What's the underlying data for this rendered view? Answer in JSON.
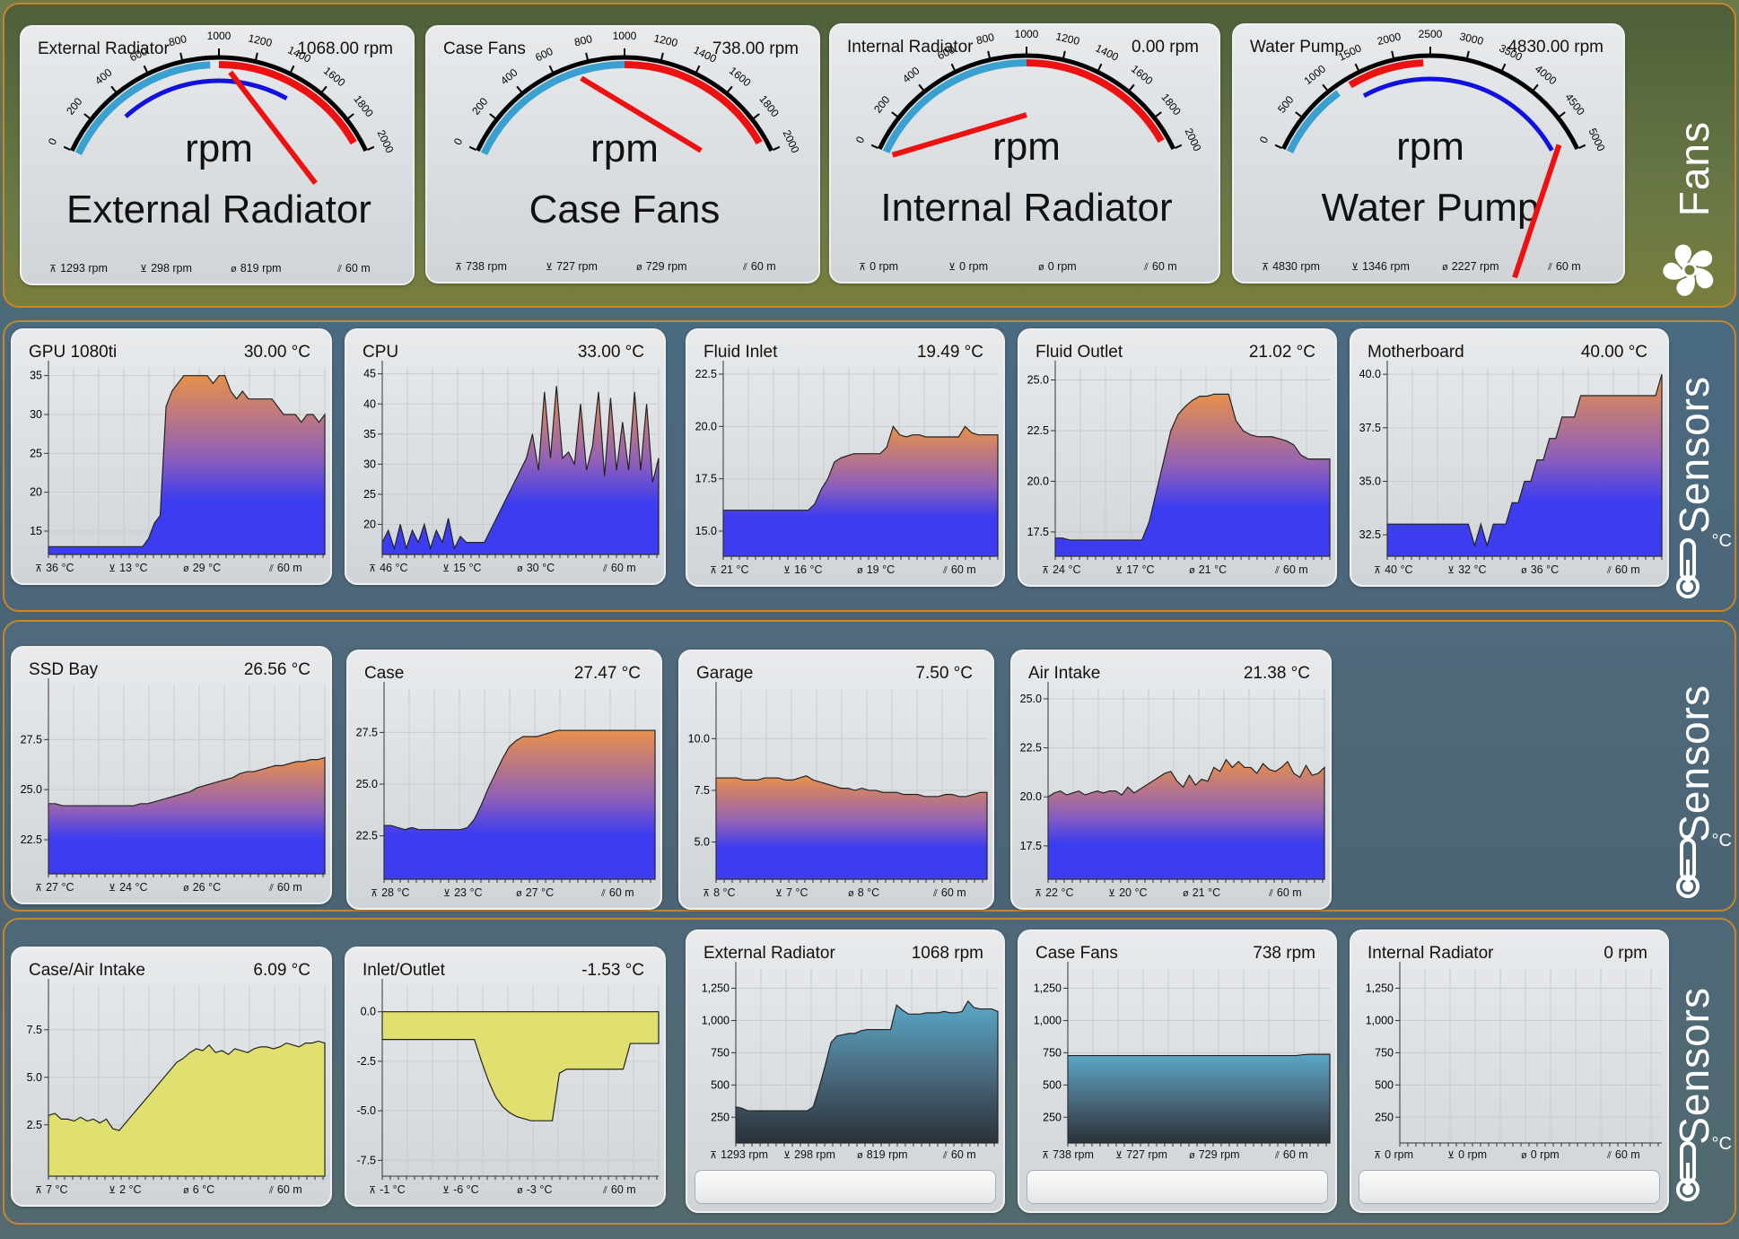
{
  "colors": {
    "band_border": "#c8862a",
    "fill_blue": "#3c3cf0",
    "fill_orange": "#e8904a",
    "fill_purple": "#9060b8",
    "fill_yellow": "#e0e070",
    "fill_teal": "#5aa8c8",
    "needle": "#ee1111",
    "gauge_red": "#ee1111",
    "gauge_blue": "#3aa0d0",
    "gauge_mark": "#1010e0"
  },
  "bands": [
    {
      "title": "Fans",
      "icon": "fan-icon"
    },
    {
      "title": "Sensors",
      "icon": "thermometer-icon",
      "unit": "°C"
    },
    {
      "title": "Sensors",
      "icon": "thermometer-icon",
      "unit": "°C"
    },
    {
      "title": "Sensors",
      "icon": "thermometer-icon",
      "unit": "°C"
    }
  ],
  "gauges": [
    {
      "name": "External Radiator",
      "value": "1068.00 rpm",
      "center": "rpm",
      "label": "External Radiator",
      "max": 2000,
      "ticks": [
        0,
        200,
        400,
        600,
        800,
        1000,
        1200,
        1400,
        1600,
        1800,
        2000
      ],
      "needle": 1068,
      "red_from": 1000,
      "red_to": 1930,
      "blue_from": 0,
      "blue_to": 950,
      "mark_from": 350,
      "mark_to": 1450,
      "stats": [
        "1293 rpm",
        "298 rpm",
        "819 rpm",
        "60 m"
      ]
    },
    {
      "name": "Case Fans",
      "value": "738.00 rpm",
      "center": "rpm",
      "label": "Case Fans",
      "max": 2000,
      "ticks": [
        0,
        200,
        400,
        600,
        800,
        1000,
        1200,
        1400,
        1600,
        1800,
        2000
      ],
      "needle": 738,
      "red_from": 1000,
      "red_to": 1930,
      "blue_from": 0,
      "blue_to": 1000,
      "mark_from": null,
      "mark_to": null,
      "stats": [
        "738 rpm",
        "727 rpm",
        "729 rpm",
        "60 m"
      ]
    },
    {
      "name": "Internal Radiator",
      "value": "0.00 rpm",
      "center": "rpm",
      "label": "Internal Radiator",
      "max": 2000,
      "ticks": [
        0,
        200,
        400,
        600,
        800,
        1000,
        1200,
        1400,
        1600,
        1800,
        2000
      ],
      "needle": 0,
      "red_from": 1000,
      "red_to": 1930,
      "blue_from": 0,
      "blue_to": 1000,
      "mark_from": null,
      "mark_to": null,
      "stats": [
        "0 rpm",
        "0 rpm",
        "0 rpm",
        "60 m"
      ]
    },
    {
      "name": "Water Pump",
      "value": "4830.00 rpm",
      "center": "rpm",
      "label": "Water Pump",
      "max": 5000,
      "ticks": [
        0,
        500,
        1000,
        1500,
        2000,
        2500,
        3000,
        3500,
        4000,
        4500,
        5000
      ],
      "needle": 4830,
      "red_from": 1300,
      "red_to": 2400,
      "blue_from": 0,
      "blue_to": 1100,
      "mark_from": 1400,
      "mark_to": 4850,
      "stats": [
        "4830 rpm",
        "1346 rpm",
        "2227 rpm",
        "60 m"
      ]
    }
  ],
  "charts": [
    {
      "name": "GPU 1080ti",
      "value": "30.00 °C",
      "yticks": [
        "35",
        "30",
        "25",
        "20",
        "15"
      ],
      "ymin": 12,
      "ymax": 36,
      "style": "temp",
      "stats": [
        "36 °C",
        "13 °C",
        "29 °C",
        "60 m"
      ],
      "chart_data": {
        "type": "area",
        "y": [
          13,
          13,
          13,
          13,
          13,
          13,
          13,
          13,
          13,
          13,
          13,
          13,
          13,
          13,
          13,
          13,
          13,
          14,
          16,
          17,
          31,
          33,
          34,
          35,
          35,
          35,
          35,
          35,
          34,
          35,
          35,
          33,
          32,
          33,
          32,
          32,
          32,
          32,
          32,
          31,
          30,
          30,
          30,
          29,
          30,
          30,
          29,
          30
        ]
      }
    },
    {
      "name": "CPU",
      "value": "33.00 °C",
      "yticks": [
        "45",
        "40",
        "35",
        "30",
        "25",
        "20"
      ],
      "ymin": 15,
      "ymax": 46,
      "style": "temp",
      "stats": [
        "46 °C",
        "15 °C",
        "30 °C",
        "60 m"
      ],
      "chart_data": {
        "type": "area",
        "y": [
          17,
          19,
          16,
          20,
          16,
          19,
          17,
          20,
          16,
          19,
          17,
          21,
          16,
          18,
          17,
          17,
          17,
          17,
          19,
          21,
          23,
          25,
          27,
          29,
          31,
          35,
          29,
          42,
          31,
          43,
          31,
          32,
          30,
          40,
          29,
          33,
          42,
          28,
          41,
          29,
          37,
          29,
          42,
          29,
          40,
          27,
          31
        ]
      }
    },
    {
      "name": "Fluid Inlet",
      "value": "19.49 °C",
      "yticks": [
        "22.5",
        "20.0",
        "17.5",
        "15.0"
      ],
      "ymin": 13.8,
      "ymax": 22.8,
      "style": "temp",
      "stats": [
        "21 °C",
        "16 °C",
        "19 °C",
        "60 m"
      ],
      "chart_data": {
        "type": "area",
        "y": [
          16,
          16,
          16,
          16,
          16,
          16,
          16,
          16,
          16,
          16,
          16,
          16,
          16,
          16,
          16.3,
          17,
          17.5,
          18.3,
          18.5,
          18.6,
          18.7,
          18.7,
          18.7,
          18.7,
          18.7,
          19,
          20,
          19.6,
          19.5,
          19.6,
          19.6,
          19.5,
          19.5,
          19.5,
          19.5,
          19.5,
          19.5,
          20,
          19.7,
          19.6,
          19.6,
          19.6,
          19.6
        ]
      }
    },
    {
      "name": "Fluid Outlet",
      "value": "21.02 °C",
      "yticks": [
        "25.0",
        "22.5",
        "20.0",
        "17.5"
      ],
      "ymin": 16.3,
      "ymax": 25.6,
      "style": "temp",
      "stats": [
        "24 °C",
        "17 °C",
        "21 °C",
        "60 m"
      ],
      "chart_data": {
        "type": "area",
        "y": [
          17.2,
          17.2,
          17.1,
          17.1,
          17.1,
          17.1,
          17.1,
          17.1,
          17.1,
          17.1,
          17.1,
          17.1,
          17.1,
          18,
          19.5,
          21,
          22.5,
          23.3,
          23.7,
          24,
          24.2,
          24.2,
          24.3,
          24.3,
          24.3,
          23,
          22.5,
          22.3,
          22.2,
          22.2,
          22.2,
          22.1,
          22,
          21.8,
          21.3,
          21.1,
          21.1,
          21.1,
          21.1
        ]
      }
    },
    {
      "name": "Motherboard",
      "value": "40.00 °C",
      "yticks": [
        "40.0",
        "37.5",
        "35.0",
        "32.5"
      ],
      "ymin": 31.5,
      "ymax": 40.3,
      "style": "temp",
      "stats": [
        "40 °C",
        "32 °C",
        "36 °C",
        "60 m"
      ],
      "chart_data": {
        "type": "area",
        "y": [
          33,
          33,
          33,
          33,
          33,
          33,
          33,
          33,
          33,
          33,
          33,
          33,
          33,
          33,
          32,
          33,
          32,
          33,
          33,
          33,
          34,
          34,
          35,
          35,
          36,
          36,
          37,
          37,
          38,
          38,
          38,
          39,
          39,
          39,
          39,
          39,
          39,
          39,
          39,
          39,
          39,
          39,
          39,
          39,
          40
        ]
      }
    },
    {
      "name": "SSD Bay",
      "value": "26.56 °C",
      "yticks": [
        "27.5",
        "25.0",
        "22.5"
      ],
      "ymin": 20.8,
      "ymax": 30.2,
      "style": "temp",
      "stats": [
        "27 °C",
        "24 °C",
        "26 °C",
        "60 m"
      ],
      "chart_data": {
        "type": "area",
        "y": [
          24.3,
          24.3,
          24.2,
          24.2,
          24.2,
          24.2,
          24.2,
          24.2,
          24.2,
          24.2,
          24.2,
          24.2,
          24.2,
          24.3,
          24.3,
          24.4,
          24.5,
          24.6,
          24.7,
          24.8,
          24.9,
          25.1,
          25.2,
          25.3,
          25.4,
          25.5,
          25.6,
          25.8,
          25.9,
          25.9,
          26,
          26.1,
          26.2,
          26.2,
          26.3,
          26.4,
          26.4,
          26.5,
          26.5,
          26.6
        ]
      }
    },
    {
      "name": "Case",
      "value": "27.47 °C",
      "yticks": [
        "27.5",
        "25.0",
        "22.5"
      ],
      "ymin": 20.4,
      "ymax": 29.6,
      "style": "temp",
      "stats": [
        "28 °C",
        "23 °C",
        "27 °C",
        "60 m"
      ],
      "chart_data": {
        "type": "area",
        "y": [
          23,
          23,
          22.9,
          22.8,
          22.9,
          22.8,
          22.8,
          22.8,
          22.8,
          22.8,
          22.8,
          22.8,
          22.9,
          23.3,
          24,
          24.8,
          25.5,
          26.2,
          26.8,
          27.1,
          27.3,
          27.3,
          27.3,
          27.4,
          27.5,
          27.6,
          27.6,
          27.6,
          27.6,
          27.6,
          27.6,
          27.6,
          27.6,
          27.6,
          27.6,
          27.6,
          27.6,
          27.6,
          27.6,
          27.6
        ]
      }
    },
    {
      "name": "Garage",
      "value": "7.50 °C",
      "yticks": [
        "10.0",
        "7.5",
        "5.0"
      ],
      "ymin": 3.2,
      "ymax": 12.4,
      "style": "temp",
      "stats": [
        "8 °C",
        "7 °C",
        "8 °C",
        "60 m"
      ],
      "chart_data": {
        "type": "area",
        "y": [
          8.1,
          8.1,
          8.1,
          8.1,
          8,
          8,
          8,
          8.1,
          8.1,
          8.1,
          8,
          8,
          8.1,
          8.2,
          8,
          7.9,
          7.8,
          7.7,
          7.6,
          7.6,
          7.5,
          7.6,
          7.5,
          7.5,
          7.4,
          7.4,
          7.4,
          7.3,
          7.3,
          7.3,
          7.2,
          7.2,
          7.2,
          7.3,
          7.3,
          7.2,
          7.2,
          7.3,
          7.4,
          7.4
        ]
      }
    },
    {
      "name": "Air Intake",
      "value": "21.38 °C",
      "yticks": [
        "25.0",
        "22.5",
        "20.0",
        "17.5"
      ],
      "ymin": 15.8,
      "ymax": 25.5,
      "style": "temp",
      "stats": [
        "22 °C",
        "20 °C",
        "21 °C",
        "60 m"
      ],
      "chart_data": {
        "type": "area",
        "y": [
          20,
          20.2,
          20.3,
          20.1,
          20.2,
          20.3,
          20.1,
          20.2,
          20.3,
          20.2,
          20.3,
          20.3,
          20.1,
          20.5,
          20.2,
          20.4,
          20.6,
          20.8,
          21,
          21.2,
          21.3,
          20.8,
          20.5,
          21.1,
          20.6,
          20.9,
          20.8,
          21.5,
          21.3,
          21.9,
          21.5,
          21.8,
          21.5,
          21.5,
          21.2,
          21.7,
          21.4,
          21.3,
          21.5,
          21.8,
          21.2,
          21,
          21.6,
          21.1,
          21.2,
          21.5
        ]
      }
    },
    {
      "name": "Case/Air Intake",
      "value": "6.09 °C",
      "yticks": [
        "7.5",
        "5.0",
        "2.5"
      ],
      "ymin": -0.2,
      "ymax": 9.8,
      "style": "diff",
      "stats": [
        "7 °C",
        "2 °C",
        "6 °C",
        "60 m"
      ],
      "chart_data": {
        "type": "area",
        "y": [
          3,
          3.1,
          2.8,
          2.8,
          2.7,
          2.9,
          2.7,
          2.8,
          2.6,
          2.8,
          2.3,
          2.2,
          2.6,
          3,
          3.4,
          3.8,
          4.2,
          4.6,
          5,
          5.4,
          5.8,
          6,
          6.3,
          6.5,
          6.4,
          6.7,
          6.3,
          6.4,
          6.2,
          6.5,
          6.4,
          6.3,
          6.5,
          6.6,
          6.6,
          6.5,
          6.6,
          6.8,
          6.7,
          6.6,
          6.8,
          6.8,
          6.9,
          6.8
        ]
      }
    },
    {
      "name": "Inlet/Outlet",
      "value": "-1.53 °C",
      "yticks": [
        "0.0",
        "-2.5",
        "-5.0",
        "-7.5"
      ],
      "ymin": -8.3,
      "ymax": 1.3,
      "style": "diff_neg",
      "stats": [
        "-1 °C",
        "-6 °C",
        "-3 °C",
        "60 m"
      ],
      "chart_data": {
        "type": "area",
        "y": [
          -1.4,
          -1.4,
          -1.4,
          -1.4,
          -1.4,
          -1.4,
          -1.4,
          -1.4,
          -1.4,
          -1.4,
          -1.4,
          -1.4,
          -1.4,
          -1.4,
          -2.5,
          -3.5,
          -4.3,
          -4.8,
          -5.1,
          -5.3,
          -5.4,
          -5.5,
          -5.5,
          -5.5,
          -5.5,
          -3.1,
          -2.9,
          -2.9,
          -2.9,
          -2.9,
          -2.9,
          -2.9,
          -2.9,
          -2.9,
          -2.9,
          -1.6,
          -1.6,
          -1.6,
          -1.6,
          -1.6
        ]
      }
    },
    {
      "name": "External Radiator",
      "value": "1068 rpm",
      "yticks": [
        "1,250",
        "1,000",
        "750",
        "500",
        "250"
      ],
      "ymin": 50,
      "ymax": 1400,
      "style": "rpm",
      "stats": [
        "1293 rpm",
        "298 rpm",
        "819 rpm",
        "60 m"
      ],
      "chart_data": {
        "type": "area",
        "y": [
          330,
          320,
          300,
          300,
          300,
          300,
          300,
          300,
          300,
          300,
          300,
          300,
          300,
          330,
          480,
          650,
          830,
          880,
          890,
          900,
          900,
          920,
          930,
          930,
          930,
          930,
          930,
          1120,
          1080,
          1050,
          1050,
          1050,
          1060,
          1060,
          1060,
          1070,
          1060,
          1060,
          1070,
          1150,
          1100,
          1090,
          1090,
          1090,
          1070
        ]
      }
    },
    {
      "name": "Case Fans",
      "value": "738 rpm",
      "yticks": [
        "1,250",
        "1,000",
        "750",
        "500",
        "250"
      ],
      "ymin": 50,
      "ymax": 1400,
      "style": "rpm",
      "stats": [
        "738 rpm",
        "727 rpm",
        "729 rpm",
        "60 m"
      ],
      "chart_data": {
        "type": "area",
        "y": [
          728,
          728,
          728,
          728,
          728,
          728,
          728,
          728,
          728,
          728,
          728,
          728,
          728,
          728,
          728,
          728,
          728,
          728,
          728,
          728,
          728,
          728,
          728,
          728,
          728,
          728,
          728,
          728,
          728,
          728,
          728,
          728,
          728,
          728,
          728,
          735,
          738,
          738,
          738,
          738
        ]
      }
    },
    {
      "name": "Internal Radiator",
      "value": "0 rpm",
      "yticks": [
        "1,250",
        "1,000",
        "750",
        "500",
        "250"
      ],
      "ymin": 50,
      "ymax": 1400,
      "style": "rpm",
      "stats": [
        "0 rpm",
        "0 rpm",
        "0 rpm",
        "60 m"
      ],
      "chart_data": {
        "type": "area",
        "y": []
      }
    }
  ]
}
